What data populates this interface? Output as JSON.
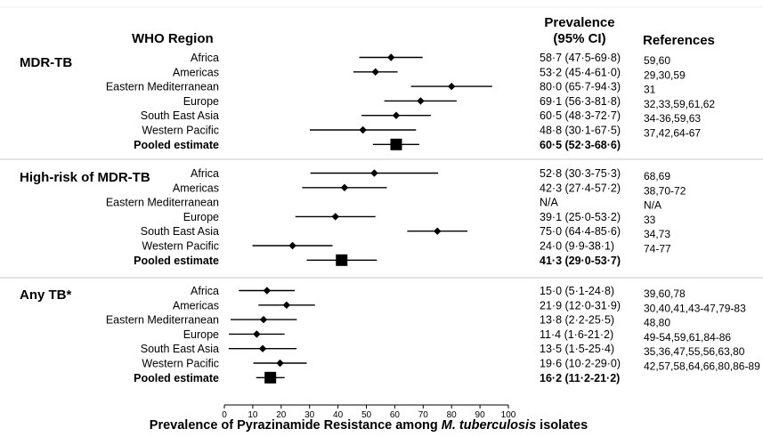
{
  "chart_data": {
    "type": "forest",
    "headers": {
      "region": "WHO Region",
      "prevalence_line1": "Prevalence",
      "prevalence_line2": "(95% CI)",
      "references": "References"
    },
    "xlabel_parts": [
      "Prevalence of Pyrazinamide Resistance among ",
      "M. tuberculosis",
      " isolates"
    ],
    "xlim": [
      0,
      100
    ],
    "xticks": [
      0,
      10,
      20,
      30,
      40,
      50,
      60,
      70,
      80,
      90,
      100
    ],
    "groups": [
      {
        "name": "MDR-TB",
        "rows": [
          {
            "region": "Africa",
            "estimate": 58.7,
            "lower": 47.5,
            "upper": 69.8,
            "label": "58·7 (47·5-69·8)",
            "refs": "59,60",
            "pooled": false
          },
          {
            "region": "Americas",
            "estimate": 53.2,
            "lower": 45.4,
            "upper": 61.0,
            "label": "53·2 (45·4-61·0)",
            "refs": "29,30,59",
            "pooled": false
          },
          {
            "region": "Eastern Mediterranean",
            "estimate": 80.0,
            "lower": 65.7,
            "upper": 94.3,
            "label": "80·0 (65·7-94·3)",
            "refs": "31",
            "pooled": false
          },
          {
            "region": "Europe",
            "estimate": 69.1,
            "lower": 56.3,
            "upper": 81.8,
            "label": "69·1 (56·3-81·8)",
            "refs": "32,33,59,61,62",
            "pooled": false
          },
          {
            "region": "South East Asia",
            "estimate": 60.5,
            "lower": 48.3,
            "upper": 72.7,
            "label": "60·5 (48·3-72·7)",
            "refs": "34-36,59,63",
            "pooled": false
          },
          {
            "region": "Western Pacific",
            "estimate": 48.8,
            "lower": 30.1,
            "upper": 67.5,
            "label": "48·8 (30·1-67·5)",
            "refs": "37,42,64-67",
            "pooled": false
          },
          {
            "region": "Pooled estimate",
            "estimate": 60.5,
            "lower": 52.3,
            "upper": 68.6,
            "label": "60·5 (52·3-68·6)",
            "refs": "",
            "pooled": true
          }
        ]
      },
      {
        "name": "High-risk of MDR-TB",
        "rows": [
          {
            "region": "Africa",
            "estimate": 52.8,
            "lower": 30.3,
            "upper": 75.3,
            "label": "52·8 (30·3-75·3)",
            "refs": "68,69",
            "pooled": false
          },
          {
            "region": "Americas",
            "estimate": 42.3,
            "lower": 27.4,
            "upper": 57.2,
            "label": "42·3 (27·4-57·2)",
            "refs": "38,70-72",
            "pooled": false
          },
          {
            "region": "Eastern Mediterranean",
            "estimate": null,
            "lower": null,
            "upper": null,
            "label": "N/A",
            "refs": "N/A",
            "pooled": false
          },
          {
            "region": "Europe",
            "estimate": 39.1,
            "lower": 25.0,
            "upper": 53.2,
            "label": "39·1 (25·0-53·2)",
            "refs": "33",
            "pooled": false
          },
          {
            "region": "South East Asia",
            "estimate": 75.0,
            "lower": 64.4,
            "upper": 85.6,
            "label": "75·0 (64·4-85·6)",
            "refs": "34,73",
            "pooled": false
          },
          {
            "region": "Western Pacific",
            "estimate": 24.0,
            "lower": 9.9,
            "upper": 38.1,
            "label": "24·0 (9·9-38·1)",
            "refs": "74-77",
            "pooled": false
          },
          {
            "region": "Pooled estimate",
            "estimate": 41.3,
            "lower": 29.0,
            "upper": 53.7,
            "label": "41·3 (29·0-53·7)",
            "refs": "",
            "pooled": true
          }
        ]
      },
      {
        "name": "Any TB*",
        "rows": [
          {
            "region": "Africa",
            "estimate": 15.0,
            "lower": 5.1,
            "upper": 24.8,
            "label": "15·0 (5·1-24·8)",
            "refs": "39,60,78",
            "pooled": false
          },
          {
            "region": "Americas",
            "estimate": 21.9,
            "lower": 12.0,
            "upper": 31.9,
            "label": "21·9 (12·0-31·9)",
            "refs": "30,40,41,43-47,79-83",
            "pooled": false
          },
          {
            "region": "Eastern Mediterranean",
            "estimate": 13.8,
            "lower": 2.2,
            "upper": 25.5,
            "label": "13·8 (2·2-25·5)",
            "refs": "48,80",
            "pooled": false
          },
          {
            "region": "Europe",
            "estimate": 11.4,
            "lower": 1.6,
            "upper": 21.2,
            "label": "11·4 (1·6-21·2)",
            "refs": "49-54,59,61,84-86",
            "pooled": false
          },
          {
            "region": "South East Asia",
            "estimate": 13.5,
            "lower": 1.5,
            "upper": 25.4,
            "label": "13·5 (1·5-25·4)",
            "refs": "35,36,47,55,56,63,80",
            "pooled": false
          },
          {
            "region": "Western Pacific",
            "estimate": 19.6,
            "lower": 10.2,
            "upper": 29.0,
            "label": "19·6 (10·2-29·0)",
            "refs": "42,57,58,64,66,80,86-89",
            "pooled": false
          },
          {
            "region": "Pooled estimate",
            "estimate": 16.2,
            "lower": 11.2,
            "upper": 21.2,
            "label": "16·2 (11·2-21·2)",
            "refs": "",
            "pooled": true
          }
        ]
      }
    ],
    "grid": false,
    "marker_color": "#000000",
    "separator_color": "#c8c8c8"
  }
}
